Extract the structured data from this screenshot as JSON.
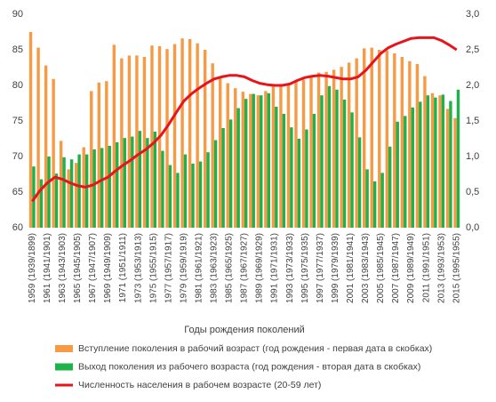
{
  "chart_data": {
    "type": "bar",
    "x_label": "Годы рождения поколений",
    "categories": [
      "1959 (1939/1899)",
      null,
      "1961 (1941/1901)",
      null,
      "1963 (1943/1903)",
      null,
      "1965 (1945/1905)",
      null,
      "1967 (1947/1907)",
      null,
      "1969 (1949/1909)",
      null,
      "1971 (1951/1911)",
      null,
      "1973 (1953/1913)",
      null,
      "1975 (1955/1915)",
      null,
      "1977 (1957/1917)",
      null,
      "1979 (1959/1919)",
      null,
      "1981 (1961/1921)",
      null,
      "1983 (1963/1923)",
      null,
      "1985 (1965/1925)",
      null,
      "1987 (1967/1927)",
      null,
      "1989 (1969/1929)",
      null,
      "1991 (1971/1931)",
      null,
      "1993 (1973/1933)",
      null,
      "1995 (1975/1935)",
      null,
      "1997 (1977/1937)",
      null,
      "1999 (1979/1939)",
      null,
      "2001 (1981/1941)",
      null,
      "2003 (1983/1943)",
      null,
      "2005 (1985/1945)",
      null,
      "2007 (1987/1947)",
      null,
      "2009 (1989/1949)",
      null,
      "2011 (1991/1951)",
      null,
      "2013 (1993/1953)",
      null,
      "2015 (1995/1955)"
    ],
    "series": [
      {
        "name": "Вступление поколения в рабочий возраст (год рождения - первая дата в скобках)",
        "type": "bar",
        "color": "#f79a46",
        "values": [
          87.5,
          85.3,
          82.8,
          80.9,
          72.2,
          68.2,
          69.1,
          71.3,
          79.2,
          80.4,
          80.6,
          85.7,
          83.8,
          84.2,
          84.2,
          84.0,
          85.6,
          85.5,
          85.1,
          85.8,
          86.6,
          86.5,
          85.9,
          85.0,
          83.1,
          81.2,
          80.3,
          79.6,
          79.1,
          78.8,
          78.6,
          79.2,
          79.9,
          80.2,
          80.1,
          80.5,
          80.8,
          81.3,
          81.8,
          81.9,
          82.2,
          82.6,
          83.2,
          83.8,
          85.2,
          85.3,
          85.0,
          84.9,
          84.5,
          84.0,
          83.4,
          83.0,
          81.3,
          78.9,
          78.6,
          76.7,
          75.4
        ]
      },
      {
        "name": "Выход поколения из рабочего возраста (год рождения - вторая дата в скобках)",
        "type": "bar",
        "color": "#1fb24a",
        "values": [
          68.6,
          66.8,
          70.0,
          67.6,
          69.9,
          69.6,
          70.3,
          70.3,
          71.0,
          71.2,
          71.5,
          72.0,
          72.6,
          72.8,
          73.6,
          72.6,
          73.5,
          70.8,
          68.8,
          67.7,
          70.3,
          69.0,
          69.3,
          70.6,
          72.3,
          74.0,
          75.2,
          76.8,
          78.1,
          78.8,
          78.6,
          78.9,
          77.0,
          76.0,
          74.1,
          72.5,
          73.8,
          76.0,
          78.6,
          79.9,
          79.4,
          78.0,
          76.2,
          72.7,
          68.2,
          66.5,
          67.7,
          71.4,
          74.9,
          75.7,
          76.9,
          77.7,
          78.6,
          78.3,
          78.7,
          77.8,
          79.4
        ]
      },
      {
        "name": "Численность населения в рабочем возрасте (20-59 лет)",
        "type": "line",
        "axis": "y2",
        "color": "#e8141b",
        "values": [
          0.37,
          0.52,
          0.63,
          0.71,
          0.68,
          0.63,
          0.59,
          0.57,
          0.6,
          0.66,
          0.71,
          0.8,
          0.88,
          0.95,
          1.03,
          1.1,
          1.19,
          1.3,
          1.45,
          1.62,
          1.78,
          1.88,
          1.96,
          2.03,
          2.09,
          2.12,
          2.14,
          2.14,
          2.12,
          2.07,
          2.03,
          2.01,
          2.0,
          2.0,
          2.02,
          2.07,
          2.11,
          2.13,
          2.14,
          2.13,
          2.11,
          2.09,
          2.09,
          2.12,
          2.21,
          2.33,
          2.45,
          2.53,
          2.58,
          2.62,
          2.66,
          2.67,
          2.67,
          2.67,
          2.63,
          2.57,
          2.5
        ]
      }
    ],
    "ylim": [
      60,
      90
    ],
    "yticks": [
      60,
      65,
      70,
      75,
      80,
      85,
      90
    ],
    "y2lim": [
      0,
      3
    ],
    "y2ticks": [
      {
        "value": 0,
        "label": "0,0"
      },
      {
        "value": 0.5,
        "label": "0,5"
      },
      {
        "value": 1,
        "label": "1,0"
      },
      {
        "value": 1.5,
        "label": "1,5"
      },
      {
        "value": 2,
        "label": "2,0"
      },
      {
        "value": 2.5,
        "label": "2,5"
      },
      {
        "value": 3,
        "label": "3,0"
      }
    ],
    "grid": false,
    "legend": "bottom"
  }
}
